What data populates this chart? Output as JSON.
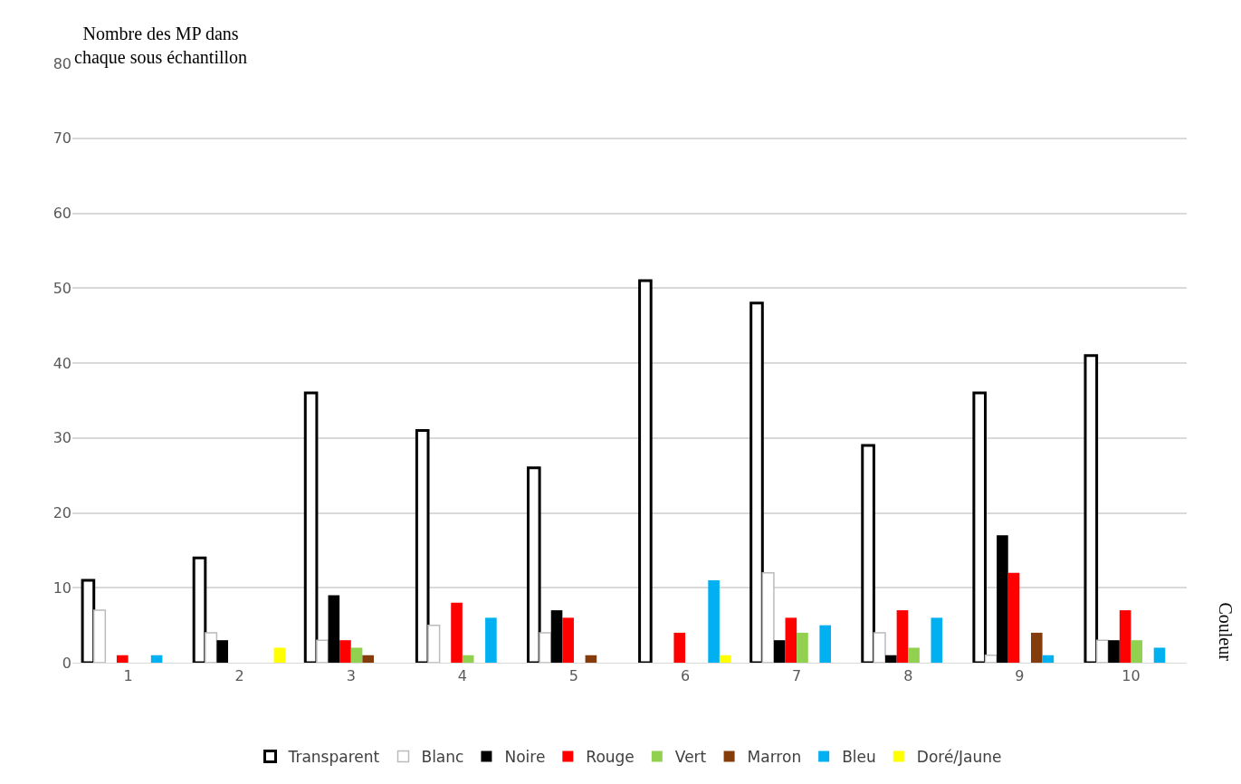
{
  "chart_data": {
    "type": "bar",
    "ylabel": "Nombre des MP dans\nchaque sous échantillon",
    "annotations": [
      "Couleur"
    ],
    "categories": [
      "1",
      "2",
      "3",
      "4",
      "5",
      "6",
      "7",
      "8",
      "9",
      "10"
    ],
    "series": [
      {
        "name": "Transparent",
        "color": "#ffffff",
        "values": [
          11,
          14,
          36,
          31,
          26,
          51,
          48,
          29,
          36,
          41
        ]
      },
      {
        "name": "Blanc",
        "color": "#ffffff",
        "values": [
          7,
          4,
          3,
          5,
          4,
          0,
          12,
          4,
          1,
          3
        ]
      },
      {
        "name": "Noire",
        "color": "#000000",
        "values": [
          0,
          3,
          9,
          0,
          7,
          0,
          3,
          1,
          17,
          3
        ]
      },
      {
        "name": "Rouge",
        "color": "#ff0000",
        "values": [
          1,
          0,
          3,
          8,
          6,
          4,
          6,
          7,
          12,
          7
        ]
      },
      {
        "name": "Vert",
        "color": "#92d050",
        "values": [
          0,
          0,
          2,
          1,
          0,
          0,
          4,
          2,
          0,
          3
        ]
      },
      {
        "name": "Marron",
        "color": "#843c0c",
        "values": [
          0,
          0,
          1,
          0,
          1,
          0,
          0,
          0,
          4,
          0
        ]
      },
      {
        "name": "Bleu",
        "color": "#00b0f0",
        "values": [
          1,
          0,
          0,
          6,
          0,
          11,
          5,
          6,
          1,
          2
        ]
      },
      {
        "name": "Doré/Jaune",
        "color": "#ffff00",
        "values": [
          0,
          2,
          0,
          0,
          0,
          1,
          0,
          0,
          0,
          0
        ]
      }
    ],
    "ylim": [
      0,
      80
    ],
    "yticks": [
      0,
      10,
      20,
      30,
      40,
      50,
      60,
      70,
      80
    ],
    "grid": "y",
    "legend": "bottom"
  }
}
